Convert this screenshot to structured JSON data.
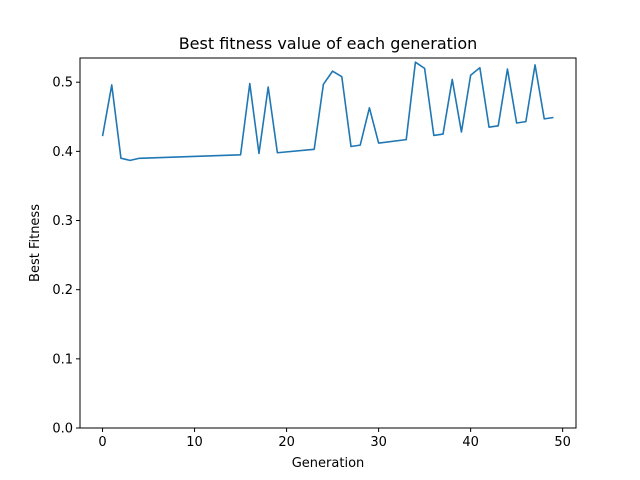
{
  "chart_data": {
    "type": "line",
    "title": "Best fitness value of each generation",
    "xlabel": "Generation",
    "ylabel": "Best Fitness",
    "xlim": [
      -2.45,
      51.45
    ],
    "ylim": [
      0,
      0.535
    ],
    "xticks": [
      0,
      10,
      20,
      30,
      40,
      50
    ],
    "yticks": [
      0.0,
      0.1,
      0.2,
      0.3,
      0.4,
      0.5
    ],
    "xtick_labels": [
      "0",
      "10",
      "20",
      "30",
      "40",
      "50"
    ],
    "ytick_labels": [
      "0.0",
      "0.1",
      "0.2",
      "0.3",
      "0.4",
      "0.5"
    ],
    "grid": false,
    "line_color": "#1f77b4",
    "series": [
      {
        "x": [
          0,
          1,
          2,
          3,
          4,
          15,
          16,
          17,
          18,
          19,
          23,
          24,
          25,
          26,
          27,
          28,
          29,
          30,
          33,
          34,
          35,
          36,
          37,
          38,
          39,
          40,
          41,
          42,
          43,
          44,
          45,
          46,
          47,
          48,
          49
        ],
        "values": [
          0.422,
          0.496,
          0.39,
          0.387,
          0.39,
          0.395,
          0.498,
          0.397,
          0.493,
          0.398,
          0.403,
          0.497,
          0.516,
          0.508,
          0.407,
          0.409,
          0.463,
          0.412,
          0.417,
          0.529,
          0.52,
          0.423,
          0.425,
          0.504,
          0.428,
          0.51,
          0.521,
          0.435,
          0.437,
          0.519,
          0.441,
          0.443,
          0.525,
          0.447,
          0.449
        ]
      }
    ]
  }
}
